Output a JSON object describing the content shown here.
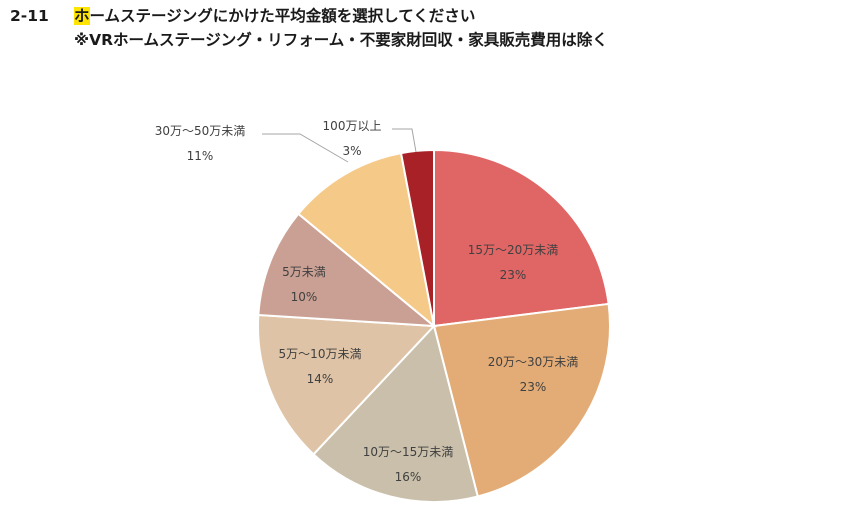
{
  "header": {
    "number": "2-11",
    "title_first_char": "ホ",
    "title_rest": "ームステージングにかけた平均金額を選択してください",
    "subtitle": "※VRホームステージング・リフォーム・不要家財回収・家具販売費用は除く"
  },
  "chart_data": {
    "type": "pie",
    "categories": [
      "15万～20万未満",
      "20万～30万未満",
      "10万～15万未満",
      "5万～10万未満",
      "5万未満",
      "30万～50万未満",
      "100万以上"
    ],
    "values": [
      23,
      23,
      16,
      14,
      10,
      11,
      3
    ],
    "labels": [
      "23%",
      "23%",
      "16%",
      "14%",
      "10%",
      "11%",
      "3%"
    ],
    "colors": [
      "#e06666",
      "#e3ac76",
      "#c9bfaa",
      "#dfc3a6",
      "#c9a093",
      "#f5c987",
      "#a82126"
    ]
  }
}
